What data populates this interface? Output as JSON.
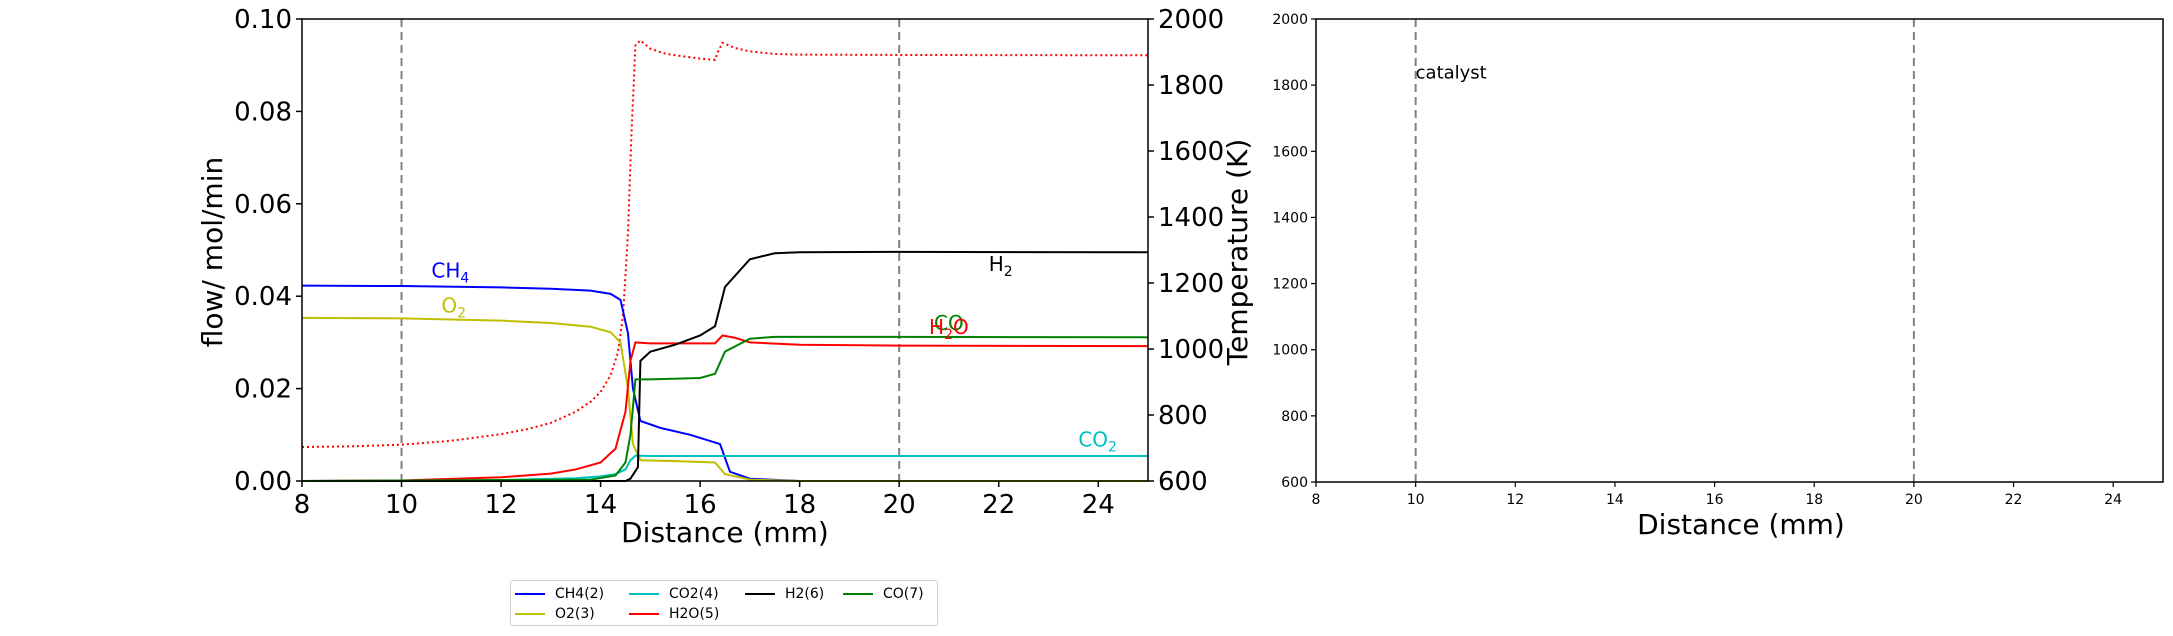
{
  "chart_data": [
    {
      "type": "line",
      "xlabel": "Distance (mm)",
      "ylabel": "flow/ mol/min",
      "y2label": "Temperature (K)",
      "xlim": [
        8,
        25
      ],
      "ylim": [
        0,
        0.1
      ],
      "y2lim": [
        600,
        2000
      ],
      "xticks": [
        "8",
        "10",
        "12",
        "14",
        "16",
        "18",
        "20",
        "22",
        "24"
      ],
      "yticks": [
        "0.00",
        "0.02",
        "0.04",
        "0.06",
        "0.08",
        "0.10"
      ],
      "y2ticks": [
        "600",
        "800",
        "1000",
        "1200",
        "1400",
        "1600",
        "1800",
        "2000"
      ],
      "catalyst_bounds": [
        10,
        20
      ],
      "series": [
        {
          "name": "CH4(2)",
          "color": "#0000ff",
          "x": [
            8,
            10,
            12,
            13,
            13.8,
            14.2,
            14.4,
            14.55,
            14.65,
            14.8,
            15.2,
            15.8,
            16.4,
            16.6,
            17,
            18,
            20,
            25
          ],
          "y": [
            0.0423,
            0.0422,
            0.0419,
            0.0416,
            0.0412,
            0.0405,
            0.0392,
            0.032,
            0.02,
            0.013,
            0.0115,
            0.01,
            0.008,
            0.002,
            0.0005,
            0.0,
            0.0,
            0.0
          ]
        },
        {
          "name": "O2(3)",
          "color": "#bfbf00",
          "x": [
            8,
            10,
            12,
            13,
            13.8,
            14.2,
            14.4,
            14.55,
            14.65,
            14.8,
            15.5,
            16.3,
            16.5,
            17,
            18,
            25
          ],
          "y": [
            0.0353,
            0.0352,
            0.0347,
            0.0342,
            0.0334,
            0.0322,
            0.03,
            0.02,
            0.008,
            0.0045,
            0.0043,
            0.004,
            0.0015,
            0.0003,
            0.0,
            0.0
          ]
        },
        {
          "name": "CO2(4)",
          "color": "#00bfbf",
          "x": [
            8,
            12,
            13.5,
            14,
            14.3,
            14.5,
            14.6,
            14.7,
            15,
            16.4,
            20,
            25
          ],
          "y": [
            0.0,
            0.0002,
            0.0006,
            0.001,
            0.0015,
            0.0025,
            0.0045,
            0.0055,
            0.0054,
            0.0054,
            0.0054,
            0.0054
          ]
        },
        {
          "name": "H2O(5)",
          "color": "#ff0000",
          "x": [
            8,
            10,
            12,
            13,
            13.5,
            14,
            14.3,
            14.5,
            14.6,
            14.7,
            15,
            16.3,
            16.45,
            16.7,
            17,
            18,
            20,
            25
          ],
          "y": [
            0.0,
            0.0001,
            0.0008,
            0.0016,
            0.0025,
            0.004,
            0.007,
            0.015,
            0.026,
            0.03,
            0.0298,
            0.0298,
            0.0315,
            0.031,
            0.03,
            0.0295,
            0.0293,
            0.0292
          ]
        },
        {
          "name": "H2(6)",
          "color": "#000000",
          "x": [
            8,
            14,
            14.5,
            14.6,
            14.75,
            14.8,
            15,
            15.5,
            16,
            16.3,
            16.5,
            17,
            17.5,
            18,
            20,
            25
          ],
          "y": [
            0.0,
            0.0,
            0.0,
            0.0005,
            0.003,
            0.026,
            0.028,
            0.0295,
            0.0315,
            0.0335,
            0.042,
            0.048,
            0.0493,
            0.0495,
            0.0496,
            0.0495
          ]
        },
        {
          "name": "CO(7)",
          "color": "#008000",
          "x": [
            8,
            13.8,
            14.3,
            14.5,
            14.6,
            14.7,
            15,
            16,
            16.3,
            16.5,
            17,
            17.5,
            18,
            20,
            25
          ],
          "y": [
            0.0,
            0.0003,
            0.0012,
            0.004,
            0.01,
            0.022,
            0.022,
            0.0223,
            0.0232,
            0.028,
            0.0308,
            0.0312,
            0.0312,
            0.0312,
            0.0311
          ]
        }
      ],
      "temperature": {
        "color": "#ff0000",
        "style": "dotted",
        "x": [
          8,
          9,
          10,
          11,
          12,
          12.5,
          13,
          13.5,
          13.8,
          14,
          14.2,
          14.35,
          14.45,
          14.55,
          14.62,
          14.7,
          14.8,
          15,
          15.3,
          15.6,
          16,
          16.3,
          16.35,
          16.45,
          16.7,
          17,
          17.5,
          18,
          20,
          25
        ],
        "y": [
          703,
          705,
          710,
          722,
          742,
          756,
          776,
          810,
          840,
          870,
          920,
          990,
          1100,
          1350,
          1650,
          1920,
          1935,
          1910,
          1895,
          1888,
          1880,
          1876,
          1898,
          1928,
          1912,
          1902,
          1894,
          1892,
          1891,
          1890
        ]
      },
      "annotations": [
        {
          "text": "CH",
          "sub": "4",
          "x": 10.6,
          "y": 0.044,
          "color": "#0000ff"
        },
        {
          "text": "O",
          "sub": "2",
          "x": 10.8,
          "y": 0.0365,
          "color": "#bfbf00"
        },
        {
          "text": "H",
          "sub": "2",
          "x": 21.8,
          "y": 0.0455,
          "color": "#000000"
        },
        {
          "text": "CO",
          "sub": "",
          "x": 20.7,
          "y": 0.0327,
          "color": "#008000"
        },
        {
          "text": "H",
          "sub": "2",
          "tail": "O",
          "x": 20.6,
          "y": 0.0318,
          "color": "#ff0000"
        },
        {
          "text": "CO",
          "sub": "2",
          "x": 23.6,
          "y": 0.0075,
          "color": "#00bfbf"
        }
      ]
    },
    {
      "type": "line",
      "xlabel": "Distance (mm)",
      "ylabel": "",
      "xlim": [
        8,
        25
      ],
      "ylim": [
        600,
        2000
      ],
      "xticks": [
        "8",
        "10",
        "12",
        "14",
        "16",
        "18",
        "20",
        "22",
        "24"
      ],
      "yticks": [
        "600",
        "800",
        "1000",
        "1200",
        "1400",
        "1600",
        "1800",
        "2000"
      ],
      "catalyst_bounds": [
        10,
        20
      ],
      "annotations": [
        {
          "text": "catalyst",
          "x": 10.0,
          "y": 1820,
          "color": "#000000"
        }
      ],
      "series": []
    }
  ],
  "legend": {
    "items": [
      {
        "label": "CH4(2)",
        "color": "#0000ff"
      },
      {
        "label": "CO2(4)",
        "color": "#00bfbf"
      },
      {
        "label": "H2(6)",
        "color": "#000000"
      },
      {
        "label": "CO(7)",
        "color": "#008000"
      },
      {
        "label": "O2(3)",
        "color": "#bfbf00"
      },
      {
        "label": "H2O(5)",
        "color": "#ff0000"
      }
    ]
  }
}
